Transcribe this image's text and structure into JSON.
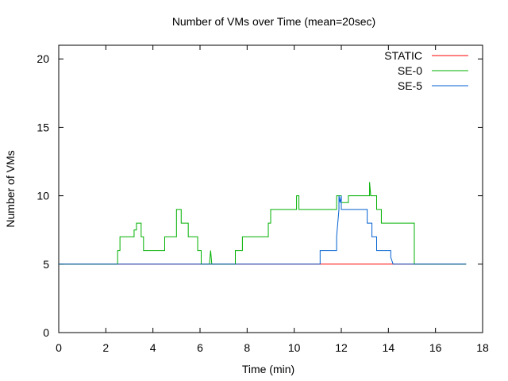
{
  "chart_data": {
    "type": "line",
    "title": "Number of VMs over Time (mean=20sec)",
    "xlabel": "Time (min)",
    "ylabel": "Number of VMs",
    "xlim": [
      0,
      18
    ],
    "ylim": [
      0,
      21
    ],
    "xticks": [
      0,
      2,
      4,
      6,
      8,
      10,
      12,
      14,
      16,
      18
    ],
    "yticks": [
      0,
      5,
      10,
      15,
      20
    ],
    "grid": false,
    "legend_position": "top-right",
    "step": true,
    "series": [
      {
        "name": "STATIC",
        "color": "#ff0000",
        "points": [
          [
            0,
            5
          ],
          [
            17.3,
            5
          ]
        ]
      },
      {
        "name": "SE-0",
        "color": "#00b000",
        "points": [
          [
            0,
            5
          ],
          [
            2.5,
            5
          ],
          [
            2.5,
            6
          ],
          [
            2.6,
            6
          ],
          [
            2.6,
            7
          ],
          [
            3.2,
            7
          ],
          [
            3.2,
            7.5
          ],
          [
            3.3,
            7.5
          ],
          [
            3.3,
            8
          ],
          [
            3.5,
            8
          ],
          [
            3.5,
            7
          ],
          [
            3.6,
            7
          ],
          [
            3.6,
            6
          ],
          [
            4.5,
            6
          ],
          [
            4.5,
            7
          ],
          [
            5.0,
            7
          ],
          [
            5.0,
            9
          ],
          [
            5.2,
            9
          ],
          [
            5.2,
            8
          ],
          [
            5.5,
            8
          ],
          [
            5.5,
            7
          ],
          [
            5.9,
            7
          ],
          [
            5.9,
            6
          ],
          [
            6.05,
            6
          ],
          [
            6.05,
            5
          ],
          [
            6.4,
            5
          ],
          [
            6.45,
            6
          ],
          [
            6.5,
            5
          ],
          [
            7.5,
            5
          ],
          [
            7.5,
            6
          ],
          [
            7.8,
            6
          ],
          [
            7.8,
            7
          ],
          [
            8.9,
            7
          ],
          [
            8.9,
            8
          ],
          [
            9.0,
            8
          ],
          [
            9.0,
            9
          ],
          [
            10.1,
            9
          ],
          [
            10.1,
            10
          ],
          [
            10.2,
            10
          ],
          [
            10.2,
            9
          ],
          [
            11.8,
            9
          ],
          [
            11.8,
            10
          ],
          [
            12.0,
            10
          ],
          [
            12.0,
            9.5
          ],
          [
            12.3,
            9.5
          ],
          [
            12.3,
            10
          ],
          [
            13.2,
            10
          ],
          [
            13.2,
            11
          ],
          [
            13.25,
            10
          ],
          [
            13.5,
            10
          ],
          [
            13.5,
            9
          ],
          [
            13.7,
            9
          ],
          [
            13.7,
            8
          ],
          [
            15.1,
            8
          ],
          [
            15.1,
            5
          ],
          [
            17.3,
            5
          ]
        ]
      },
      {
        "name": "SE-5",
        "color": "#0060d0",
        "points": [
          [
            0,
            5
          ],
          [
            11.1,
            5
          ],
          [
            11.1,
            6
          ],
          [
            11.8,
            6
          ],
          [
            11.8,
            7
          ],
          [
            11.85,
            8
          ],
          [
            11.9,
            9
          ],
          [
            11.9,
            10
          ],
          [
            11.95,
            9.5
          ],
          [
            12.0,
            10
          ],
          [
            12.0,
            9
          ],
          [
            13.1,
            9
          ],
          [
            13.1,
            8
          ],
          [
            13.3,
            8
          ],
          [
            13.3,
            7
          ],
          [
            13.5,
            7
          ],
          [
            13.5,
            6
          ],
          [
            14.1,
            6
          ],
          [
            14.1,
            5.5
          ],
          [
            14.2,
            5
          ],
          [
            17.3,
            5
          ]
        ]
      }
    ]
  }
}
